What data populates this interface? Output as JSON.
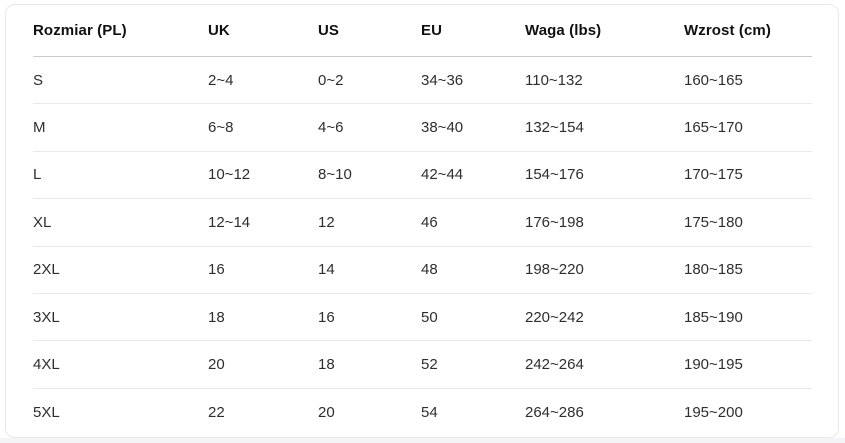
{
  "table": {
    "columns": [
      "Rozmiar (PL)",
      "UK",
      "US",
      "EU",
      "Waga (lbs)",
      "Wzrost (cm)"
    ],
    "rows": [
      [
        "S",
        "2~4",
        "0~2",
        "34~36",
        "110~132",
        "160~165"
      ],
      [
        "M",
        "6~8",
        "4~6",
        "38~40",
        "132~154",
        "165~170"
      ],
      [
        "L",
        "10~12",
        "8~10",
        "42~44",
        "154~176",
        "170~175"
      ],
      [
        "XL",
        "12~14",
        "12",
        "46",
        "176~198",
        "175~180"
      ],
      [
        "2XL",
        "16",
        "14",
        "48",
        "198~220",
        "180~185"
      ],
      [
        "3XL",
        "18",
        "16",
        "50",
        "220~242",
        "185~190"
      ],
      [
        "4XL",
        "20",
        "18",
        "52",
        "242~264",
        "190~195"
      ],
      [
        "5XL",
        "22",
        "20",
        "54",
        "264~286",
        "195~200"
      ]
    ]
  },
  "colors": {
    "card_background": "#ffffff",
    "card_border": "#e8e8ea",
    "header_text": "#111111",
    "cell_text": "#2e2e2e",
    "header_divider": "#cbcbcb",
    "row_divider": "#e9e9e9",
    "page_bottom_strip": "#f4f4f6"
  }
}
